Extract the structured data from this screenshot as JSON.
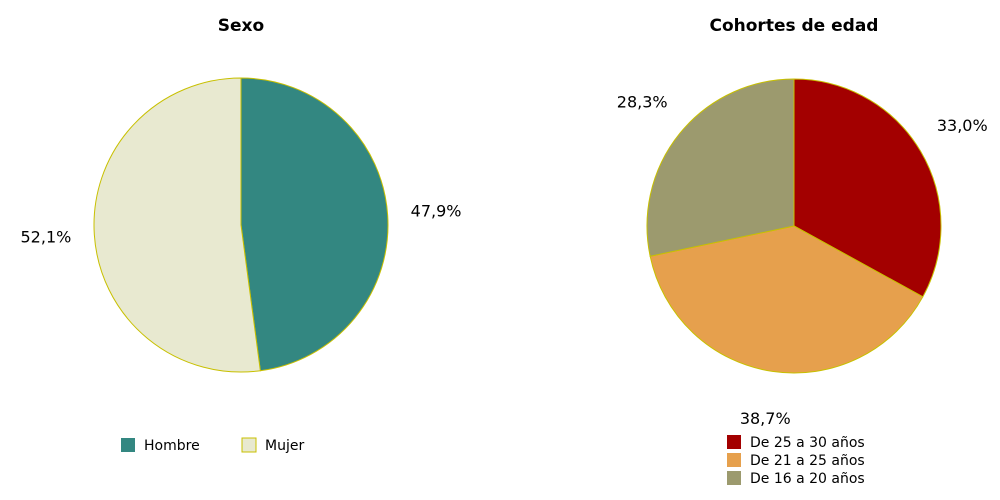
{
  "chart_data": [
    {
      "type": "pie",
      "title": "Sexo",
      "categories": [
        "Hombre",
        "Mujer"
      ],
      "values": [
        47.9,
        52.1
      ],
      "value_labels": [
        "47,9%",
        "52,1%"
      ],
      "colors": [
        "#338781",
        "#e8e9d0"
      ],
      "legend": "bottom-horizontal"
    },
    {
      "type": "pie",
      "title": "Cohortes de edad",
      "categories": [
        "De 25 a 30 años",
        "De 21 a 25 años",
        "De 16 a 20 años"
      ],
      "values": [
        33.0,
        38.7,
        28.3
      ],
      "value_labels": [
        "33,0%",
        "38,7%",
        "28,3%"
      ],
      "colors": [
        "#a30000",
        "#e6a04d",
        "#9c9a6e"
      ],
      "legend": "bottom-vertical"
    }
  ]
}
